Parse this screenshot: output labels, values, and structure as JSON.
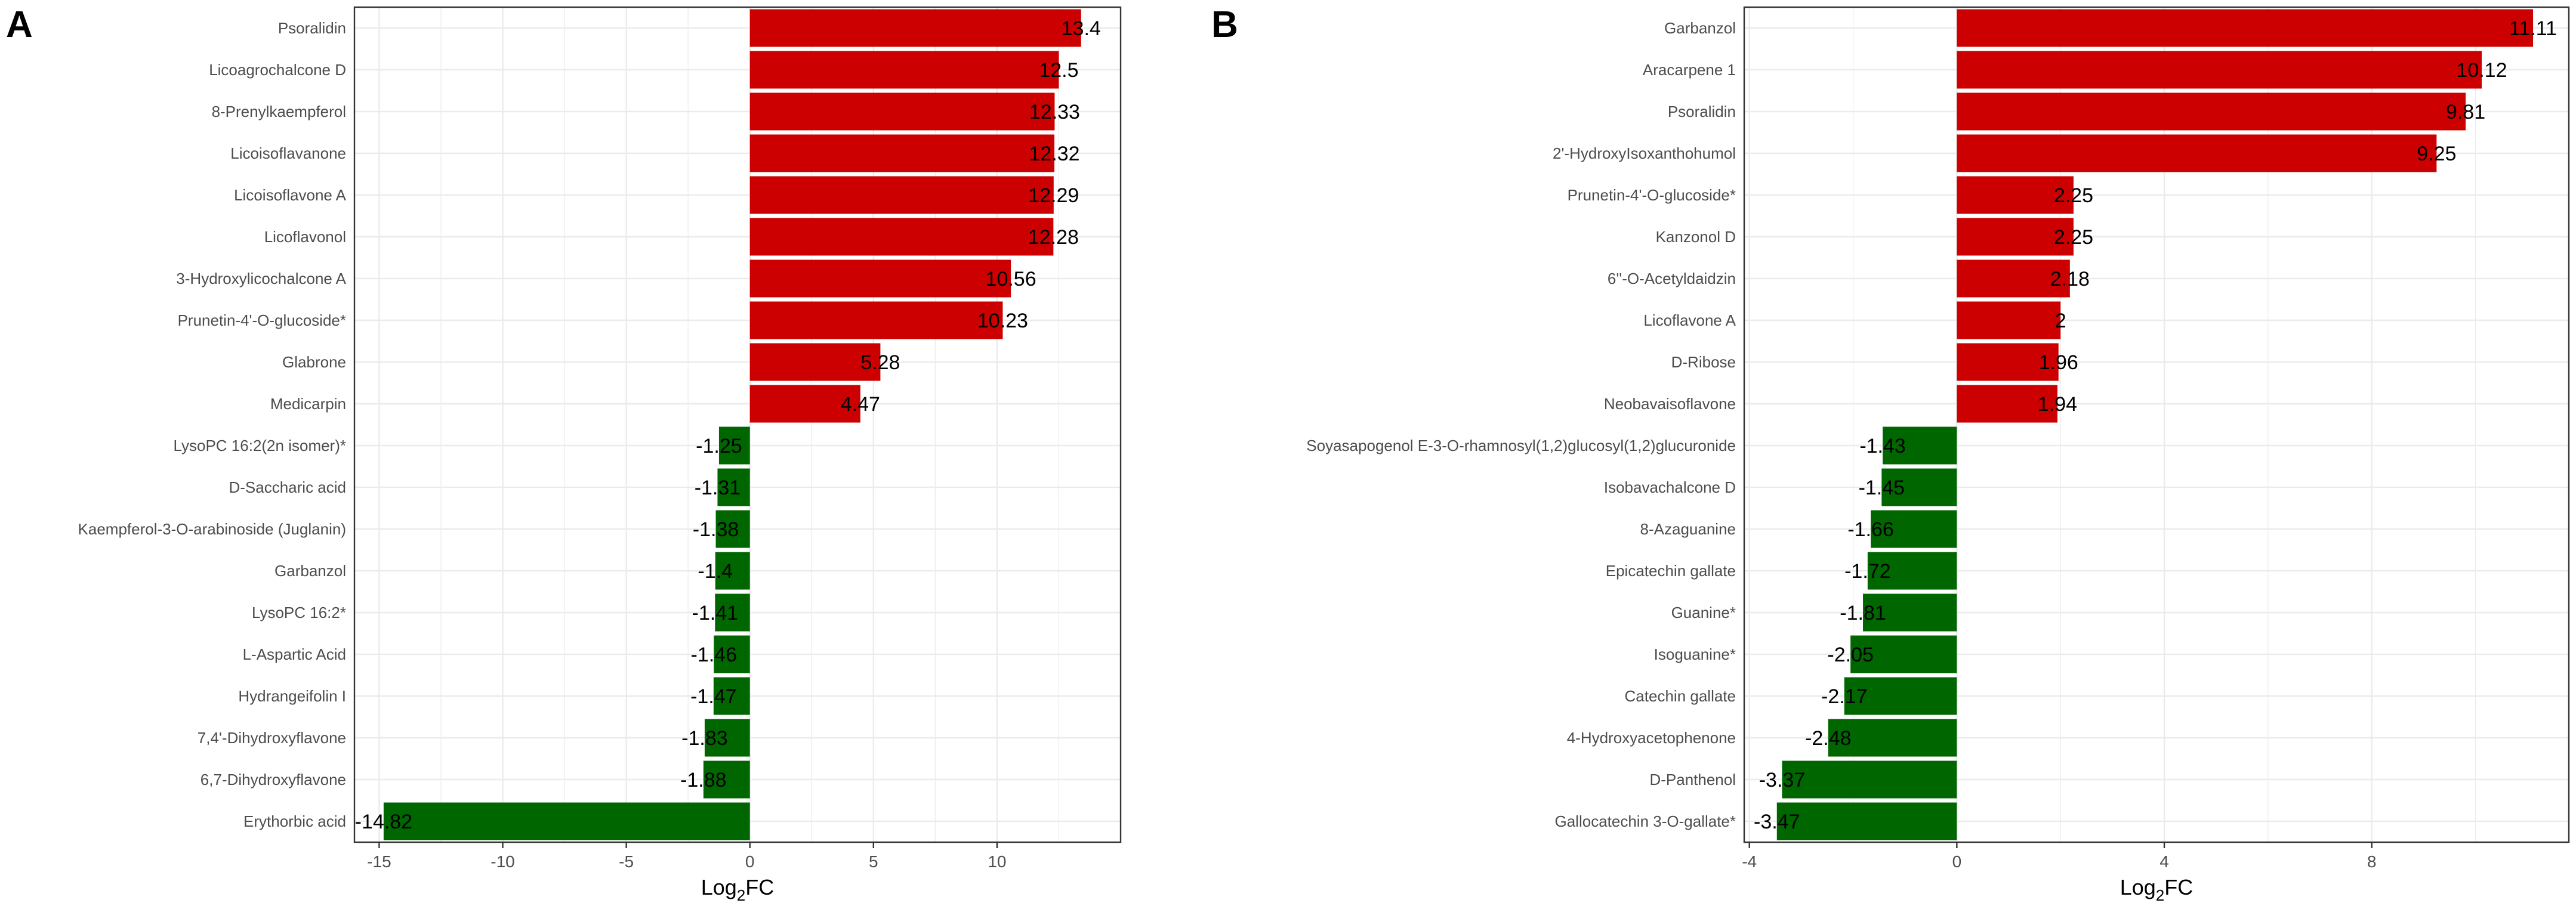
{
  "colors": {
    "up": "#cc0000",
    "down": "#006600",
    "grid": "#ebebeb",
    "panel_border": "#333333"
  },
  "chart_data": [
    {
      "panel": "A",
      "type": "bar",
      "orientation": "horizontal",
      "xlabel_main": "Log",
      "xlabel_sub": "2",
      "xlabel_tail": "FC",
      "xlim": [
        -16,
        15
      ],
      "xticks": [
        -15,
        -10,
        -5,
        0,
        5,
        10
      ],
      "tick_labels": [
        "-15",
        "-10",
        "-5",
        "0",
        "5",
        "10"
      ],
      "grid": true,
      "categories": [
        "Psoralidin",
        "Licoagrochalcone D",
        "8-Prenylkaempferol",
        "Licoisoflavanone",
        "Licoisoflavone A",
        "Licoflavonol",
        "3-Hydroxylicochalcone A",
        "Prunetin-4'-O-glucoside*",
        "Glabrone",
        "Medicarpin",
        "LysoPC 16:2(2n isomer)*",
        "D-Saccharic acid",
        "Kaempferol-3-O-arabinoside (Juglanin)",
        "Garbanzol",
        "LysoPC 16:2*",
        "L-Aspartic Acid",
        "Hydrangeifolin I",
        "7,4'-Dihydroxyflavone",
        "6,7-Dihydroxyflavone",
        "Erythorbic acid"
      ],
      "values": [
        13.4,
        12.5,
        12.33,
        12.32,
        12.29,
        12.28,
        10.56,
        10.23,
        5.28,
        4.47,
        -1.25,
        -1.31,
        -1.38,
        -1.4,
        -1.41,
        -1.46,
        -1.47,
        -1.83,
        -1.88,
        -14.82
      ],
      "value_labels": [
        "13.4",
        "12.5",
        "12.33",
        "12.32",
        "12.29",
        "12.28",
        "10.56",
        "10.23",
        "5.28",
        "4.47",
        "-1.25",
        "-1.31",
        "-1.38",
        "-1.4",
        "-1.41",
        "-1.46",
        "-1.47",
        "-1.83",
        "-1.88",
        "-14.82"
      ]
    },
    {
      "panel": "B",
      "type": "bar",
      "orientation": "horizontal",
      "xlabel_main": "Log",
      "xlabel_sub": "2",
      "xlabel_tail": "FC",
      "xlim": [
        -4.1,
        11.8
      ],
      "xticks": [
        -4,
        0,
        4,
        8
      ],
      "tick_labels": [
        "-4",
        "0",
        "4",
        "8"
      ],
      "grid": true,
      "categories": [
        "Garbanzol",
        "Aracarpene 1",
        "Psoralidin",
        "2'-HydroxyIsoxanthohumol",
        "Prunetin-4'-O-glucoside*",
        "Kanzonol D",
        "6''-O-Acetyldaidzin",
        "Licoflavone A",
        "D-Ribose",
        "Neobavaisoflavone",
        "Soyasapogenol E-3-O-rhamnosyl(1,2)glucosyl(1,2)glucuronide",
        "Isobavachalcone D",
        "8-Azaguanine",
        "Epicatechin gallate",
        "Guanine*",
        "Isoguanine*",
        "Catechin gallate",
        "4-Hydroxyacetophenone",
        "D-Panthenol",
        "Gallocatechin 3-O-gallate*"
      ],
      "values": [
        11.11,
        10.12,
        9.81,
        9.25,
        2.25,
        2.25,
        2.18,
        2,
        1.96,
        1.94,
        -1.43,
        -1.45,
        -1.66,
        -1.72,
        -1.81,
        -2.05,
        -2.17,
        -2.48,
        -3.37,
        -3.47
      ],
      "value_labels": [
        "11.11",
        "10.12",
        "9.81",
        "9.25",
        "2.25",
        "2.25",
        "2.18",
        "2",
        "1.96",
        "1.94",
        "-1.43",
        "-1.45",
        "-1.66",
        "-1.72",
        "-1.81",
        "-2.05",
        "-2.17",
        "-2.48",
        "-3.37",
        "-3.47"
      ]
    }
  ]
}
